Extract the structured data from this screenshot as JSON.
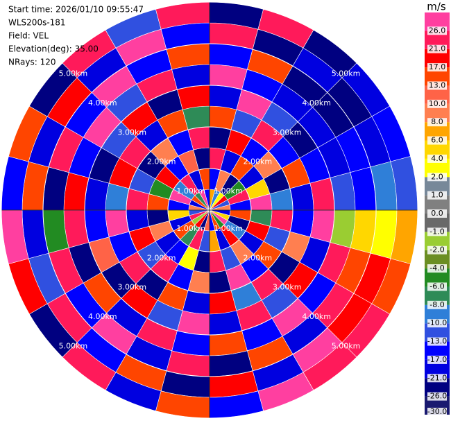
{
  "chart_data": {
    "type": "ppi",
    "info": [
      "Start time: 2026/01/10 09:55:47",
      "WLS200s-181",
      "Field: VEL",
      "Elevation(deg): 35.00",
      "NRays: 120"
    ],
    "colorbar_unit": "m/s",
    "levels": [
      {
        "value": -30,
        "label": "-30.0"
      },
      {
        "value": -26,
        "label": "-26.0"
      },
      {
        "value": -21,
        "label": "-21.0"
      },
      {
        "value": -17,
        "label": "-17.0"
      },
      {
        "value": -13,
        "label": "-13.0"
      },
      {
        "value": -10,
        "label": "-10.0"
      },
      {
        "value": -8,
        "label": "-8.0"
      },
      {
        "value": -6,
        "label": "-6.0"
      },
      {
        "value": -4,
        "label": "-4.0"
      },
      {
        "value": -2,
        "label": "-2.0"
      },
      {
        "value": -1,
        "label": "-1.0"
      },
      {
        "value": 0,
        "label": "0.0"
      },
      {
        "value": 1,
        "label": "1.0"
      },
      {
        "value": 2,
        "label": "2.0"
      },
      {
        "value": 4,
        "label": "4.0"
      },
      {
        "value": 6,
        "label": "6.0"
      },
      {
        "value": 8,
        "label": "8.0"
      },
      {
        "value": 10,
        "label": "10.0"
      },
      {
        "value": 13,
        "label": "13.0"
      },
      {
        "value": 17,
        "label": "17.0"
      },
      {
        "value": 21,
        "label": "21.0"
      },
      {
        "value": 26,
        "label": "26.0"
      }
    ],
    "colors": [
      "#191970",
      "#000080",
      "#0000e0",
      "#0000ff",
      "#3050e0",
      "#2f7fd8",
      "#2e8b57",
      "#228b22",
      "#6b8e23",
      "#9acd32",
      "#696969",
      "#808080",
      "#778899",
      "#ffff00",
      "#ffd700",
      "#ffa500",
      "#ff7f50",
      "#ff6347",
      "#ff4500",
      "#ff0000",
      "#ff1a5a",
      "#ff3fa0"
    ],
    "range_rings": [
      {
        "value": 1,
        "label": "1.00km"
      },
      {
        "value": 2,
        "label": "2.00km"
      },
      {
        "value": 3,
        "label": "3.00km"
      },
      {
        "value": 4,
        "label": "4.00km"
      },
      {
        "value": 5,
        "label": "5.00km"
      }
    ],
    "field": [
      [
        6,
        -17,
        21,
        -26,
        13,
        -21,
        26,
        -17,
        21,
        -26
      ],
      [
        -10,
        8,
        -21,
        17,
        -13,
        26,
        -17,
        13,
        -26,
        21
      ],
      [
        2,
        -26,
        13,
        -17,
        21,
        -13,
        -21,
        -26,
        -21,
        -26
      ],
      [
        17,
        -6,
        -21,
        8,
        -17,
        -26,
        -21,
        -26,
        -26,
        -21
      ],
      [
        -13,
        21,
        4,
        -26,
        13,
        -17,
        -21,
        -17,
        -21,
        -17
      ],
      [
        8,
        -17,
        26,
        -10,
        -21,
        21,
        -13,
        -17,
        -10,
        -13
      ],
      [
        -21,
        13,
        -8,
        21,
        -17,
        26,
        -2,
        4,
        2,
        6
      ],
      [
        4,
        -26,
        17,
        -13,
        8,
        -21,
        21,
        13,
        17,
        13
      ],
      [
        26,
        -10,
        -21,
        13,
        -26,
        17,
        -17,
        21,
        17,
        21
      ],
      [
        -6,
        17,
        8,
        -17,
        21,
        -13,
        26,
        -21,
        26,
        21
      ],
      [
        13,
        -21,
        -13,
        26,
        -10,
        21,
        -17,
        13,
        -21,
        26
      ],
      [
        -17,
        6,
        21,
        -26,
        17,
        -21,
        13,
        -26,
        17,
        -17
      ],
      [
        10,
        -13,
        -26,
        8,
        -21,
        26,
        -17,
        21,
        -26,
        13
      ],
      [
        -26,
        21,
        2,
        -17,
        13,
        -13,
        21,
        -21,
        13,
        -21
      ],
      [
        17,
        -8,
        -17,
        21,
        -26,
        17,
        -21,
        26,
        -17,
        21
      ],
      [
        -2,
        13,
        -21,
        -13,
        21,
        -26,
        13,
        -17,
        21,
        -26
      ],
      [
        21,
        -21,
        8,
        17,
        -17,
        10,
        -26,
        21,
        -13,
        17
      ],
      [
        -13,
        4,
        -26,
        -21,
        26,
        -17,
        21,
        -6,
        -21,
        26
      ],
      [
        8,
        -17,
        13,
        21,
        -10,
        -21,
        17,
        -26,
        13,
        -17
      ],
      [
        -21,
        26,
        -6,
        -13,
        17,
        -26,
        -17,
        21,
        -21,
        13
      ],
      [
        13,
        -10,
        17,
        -26,
        21,
        -13,
        26,
        -17,
        17,
        -26
      ],
      [
        -8,
        21,
        -17,
        8,
        -21,
        17,
        -13,
        26,
        -21,
        21
      ],
      [
        26,
        -21,
        10,
        -17,
        13,
        -26,
        21,
        -17,
        26,
        -13
      ],
      [
        -17,
        13,
        -26,
        21,
        -8,
        17,
        -21,
        13,
        -17,
        21
      ]
    ]
  }
}
